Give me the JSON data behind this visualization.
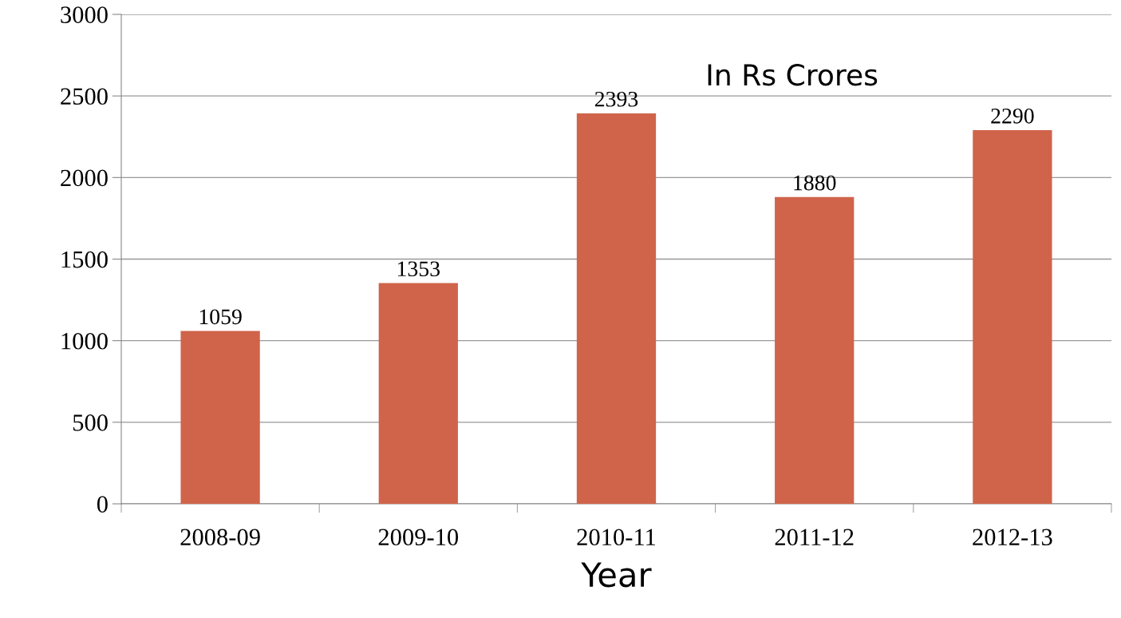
{
  "chart_data": {
    "type": "bar",
    "xlabel": "Year",
    "annotations": [
      "In Rs Crores"
    ],
    "categories": [
      "2008-09",
      "2009-10",
      "2010-11",
      "2011-12",
      "2012-13"
    ],
    "values": [
      1059,
      1353,
      2393,
      1880,
      2290
    ],
    "color": "#d0644b",
    "data_labels": true,
    "ylim": [
      0,
      3000
    ],
    "yticks": [
      0,
      500,
      1000,
      1500,
      2000,
      2500,
      3000
    ],
    "grid": "y"
  }
}
